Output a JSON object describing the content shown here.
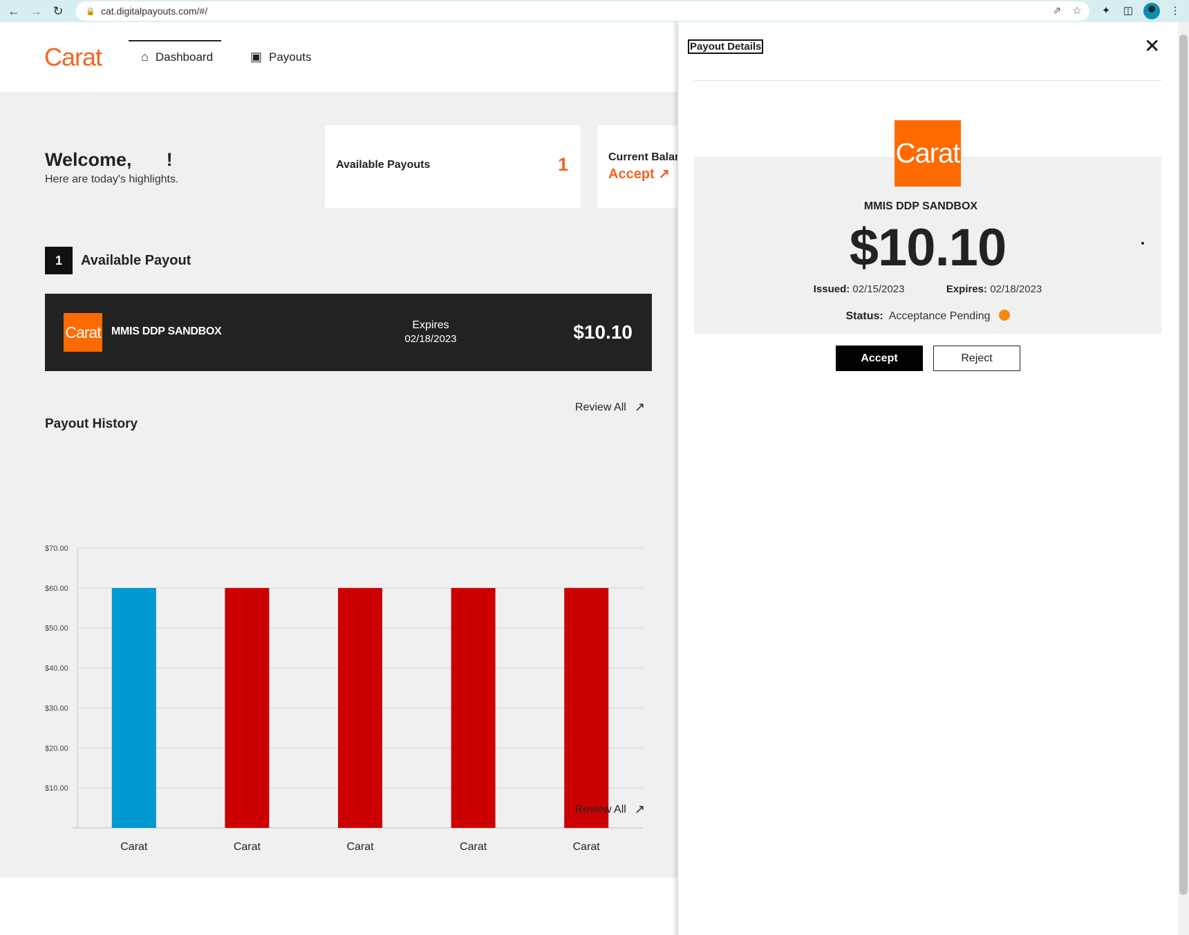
{
  "browser": {
    "url": "cat.digitalpayouts.com/#/"
  },
  "header": {
    "brand": "Carat",
    "tabs": [
      {
        "label": "Dashboard",
        "active": true
      },
      {
        "label": "Payouts",
        "active": false
      }
    ]
  },
  "dashboard": {
    "welcome": "Welcome,",
    "welcome_bang": "!",
    "subtitle": "Here are today's highlights.",
    "available_card": {
      "label": "Available Payouts",
      "value": "1"
    },
    "balance_card": {
      "label": "Current Balar",
      "action": "Accept ↗"
    },
    "available_section": {
      "count": "1",
      "title": "Available Payout"
    },
    "payout_row": {
      "logo_text": "Carat",
      "merchant": "MMIS DDP SANDBOX",
      "expires_label": "Expires",
      "expires_date": "02/18/2023",
      "amount": "$10.10"
    },
    "review_all": "Review All",
    "history_title": "Payout History"
  },
  "chart_data": {
    "type": "bar",
    "title": "Payout History",
    "categories": [
      "Carat",
      "Carat",
      "Carat",
      "Carat",
      "Carat"
    ],
    "values": [
      60,
      60,
      60,
      60,
      60
    ],
    "colors": [
      "#0099d1",
      "#cc0000",
      "#cc0000",
      "#cc0000",
      "#cc0000"
    ],
    "ylim": [
      0,
      70
    ],
    "yticks": [
      10,
      20,
      30,
      40,
      50,
      60,
      70
    ],
    "ytick_labels": [
      "$10.00",
      "$20.00",
      "$30.00",
      "$40.00",
      "$50.00",
      "$60.00",
      "$70.00"
    ],
    "grid": true,
    "xlabel": "",
    "ylabel": ""
  },
  "panel": {
    "title": "Payout Details",
    "logo_text": "Carat",
    "merchant": "MMIS DDP SANDBOX",
    "amount": "$10.10",
    "issued_label": "Issued:",
    "issued_date": "02/15/2023",
    "expires_label": "Expires:",
    "expires_date": "02/18/2023",
    "status_label": "Status:",
    "status_value": "Acceptance Pending",
    "status_color": "#f5890a",
    "accept_label": "Accept",
    "reject_label": "Reject"
  },
  "colors": {
    "accent": "#f26522",
    "logo_bg": "#ff6a00",
    "dark": "#222222"
  }
}
